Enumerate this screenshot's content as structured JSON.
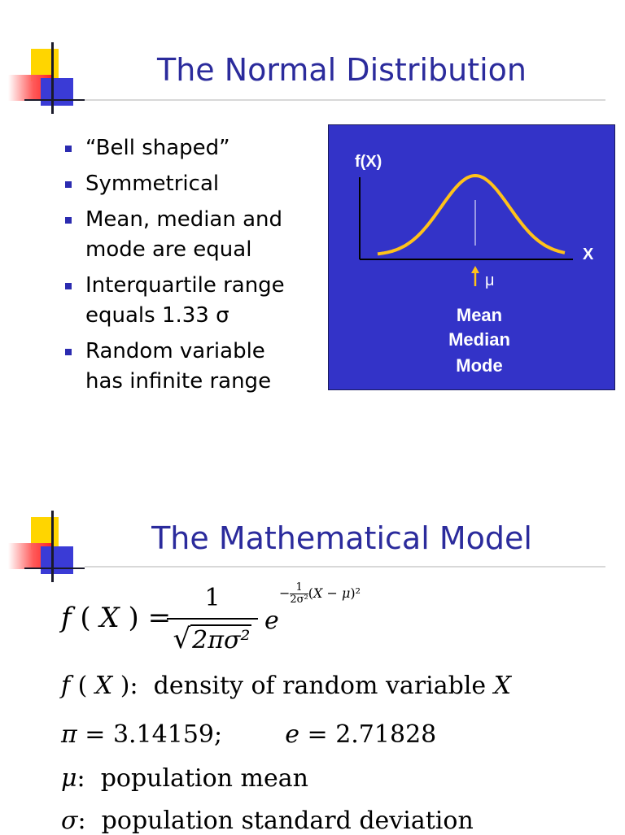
{
  "slide1": {
    "title": "The Normal Distribution",
    "bullets": [
      "“Bell shaped”",
      "Symmetrical",
      "Mean, median and mode are equal",
      "Interquartile range equals 1.33 σ",
      "Random variable has infinite range"
    ],
    "chart": {
      "y_label": "f(X)",
      "x_label": "X",
      "mu_label": "μ",
      "center_labels": [
        "Mean",
        "Median",
        "Mode"
      ],
      "colors": {
        "background": "#3333c8",
        "curve": "#ffc21a",
        "axis": "#000000",
        "text": "#ffffff"
      }
    }
  },
  "slide2": {
    "title": "The Mathematical Model",
    "formula": {
      "lhs": "f(X) =",
      "numerator": "1",
      "denominator": "2πσ²",
      "base": "e",
      "exponent": "−(1/(2σ²))(X−μ)²"
    },
    "definitions": [
      {
        "symbol": "f(X)",
        "sep": ":",
        "text": "density of random variable",
        "tail": "X"
      },
      {
        "symbol": "π",
        "sep": " = ",
        "text": "3.14159;",
        "symbol2": "e",
        "sep2": " = ",
        "text2": "2.71828"
      },
      {
        "symbol": "μ",
        "sep": ":",
        "text": "population mean"
      },
      {
        "symbol": "σ",
        "sep": ":",
        "text": "population standard deviation"
      }
    ]
  },
  "colors": {
    "title": "#2b2b9c",
    "bullet": "#2b2bb0",
    "rule": "#d8d8d8"
  }
}
